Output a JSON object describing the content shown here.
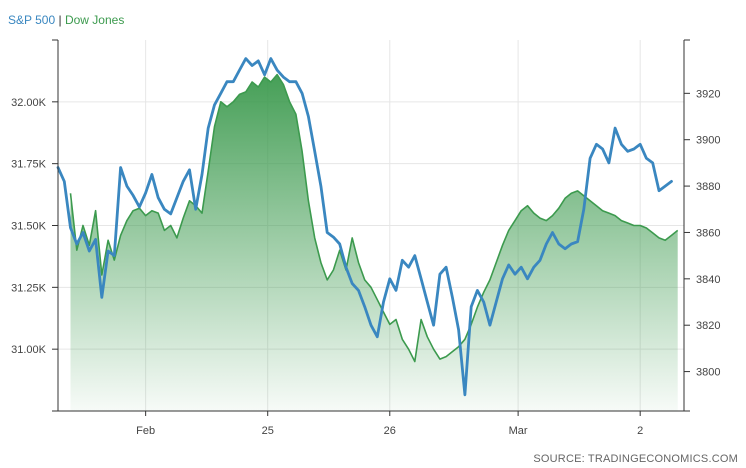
{
  "legend": {
    "sp500": "S&P 500",
    "separator": "|",
    "dowjones": "Dow Jones"
  },
  "source": "SOURCE: TRADINGECONOMICS.COM",
  "colors": {
    "sp500": "#3a87c0",
    "dowjones": "#3c9a4e",
    "axis": "#333333",
    "grid": "#e6e6e6"
  },
  "chart_data": {
    "type": "line",
    "grid": true,
    "legend_position": "top-left",
    "x_ticks": [
      {
        "label": "Feb",
        "t": 0.14
      },
      {
        "label": "25",
        "t": 0.335
      },
      {
        "label": "26",
        "t": 0.53
      },
      {
        "label": "Mar",
        "t": 0.735
      },
      {
        "label": "2",
        "t": 0.93
      }
    ],
    "y_left": {
      "series": "Dow Jones",
      "ylim": [
        30750,
        32250
      ],
      "ticks": [
        31000,
        31250,
        31500,
        31750,
        32000
      ],
      "tick_labels": [
        "31.00K",
        "31.25K",
        "31.50K",
        "31.75K",
        "32.00K"
      ]
    },
    "y_right": {
      "series": "S&P 500",
      "ylim": [
        3783,
        3943
      ],
      "ticks": [
        3800,
        3820,
        3840,
        3860,
        3880,
        3900,
        3920
      ],
      "tick_labels": [
        "3800",
        "3820",
        "3840",
        "3860",
        "3880",
        "3900",
        "3920"
      ]
    },
    "series": [
      {
        "name": "S&P 500",
        "axis": "right",
        "style": "line",
        "x": [
          0,
          0.01,
          0.02,
          0.03,
          0.04,
          0.05,
          0.06,
          0.07,
          0.08,
          0.09,
          0.1,
          0.11,
          0.12,
          0.13,
          0.14,
          0.15,
          0.16,
          0.17,
          0.18,
          0.19,
          0.2,
          0.21,
          0.22,
          0.23,
          0.24,
          0.25,
          0.26,
          0.27,
          0.28,
          0.29,
          0.3,
          0.31,
          0.32,
          0.33,
          0.34,
          0.35,
          0.36,
          0.37,
          0.38,
          0.39,
          0.4,
          0.41,
          0.42,
          0.43,
          0.44,
          0.45,
          0.46,
          0.47,
          0.48,
          0.49,
          0.5,
          0.51,
          0.52,
          0.53,
          0.54,
          0.55,
          0.56,
          0.57,
          0.58,
          0.59,
          0.6,
          0.61,
          0.62,
          0.63,
          0.64,
          0.65,
          0.66,
          0.67,
          0.68,
          0.69,
          0.7,
          0.71,
          0.72,
          0.73,
          0.74,
          0.75,
          0.76,
          0.77,
          0.78,
          0.79,
          0.8,
          0.81,
          0.82,
          0.83,
          0.84,
          0.85,
          0.86,
          0.87,
          0.88,
          0.89,
          0.9,
          0.91,
          0.92,
          0.93,
          0.94,
          0.95,
          0.96,
          0.97,
          0.98
        ],
        "values": [
          3888,
          3882,
          3862,
          3855,
          3860,
          3852,
          3857,
          3832,
          3852,
          3850,
          3888,
          3880,
          3876,
          3871,
          3877,
          3885,
          3875,
          3870,
          3868,
          3875,
          3882,
          3887,
          3870,
          3885,
          3905,
          3915,
          3920,
          3925,
          3925,
          3930,
          3935,
          3932,
          3934,
          3928,
          3935,
          3930,
          3927,
          3925,
          3925,
          3920,
          3910,
          3895,
          3880,
          3860,
          3858,
          3855,
          3845,
          3838,
          3835,
          3828,
          3820,
          3815,
          3830,
          3840,
          3835,
          3848,
          3845,
          3850,
          3840,
          3830,
          3820,
          3842,
          3845,
          3832,
          3818,
          3790,
          3828,
          3835,
          3830,
          3820,
          3830,
          3840,
          3846,
          3842,
          3845,
          3840,
          3845,
          3848,
          3855,
          3860,
          3855,
          3853,
          3855,
          3856,
          3870,
          3892,
          3898,
          3896,
          3890,
          3905,
          3898,
          3895,
          3896,
          3898,
          3892,
          3890,
          3878,
          3880,
          3882
        ]
      },
      {
        "name": "Dow Jones",
        "axis": "left",
        "style": "area",
        "x": [
          0.02,
          0.03,
          0.04,
          0.05,
          0.06,
          0.07,
          0.08,
          0.09,
          0.1,
          0.11,
          0.12,
          0.13,
          0.14,
          0.15,
          0.16,
          0.17,
          0.18,
          0.19,
          0.2,
          0.21,
          0.22,
          0.23,
          0.24,
          0.25,
          0.26,
          0.27,
          0.28,
          0.29,
          0.3,
          0.31,
          0.32,
          0.33,
          0.34,
          0.35,
          0.36,
          0.37,
          0.38,
          0.39,
          0.4,
          0.41,
          0.42,
          0.43,
          0.44,
          0.45,
          0.46,
          0.47,
          0.48,
          0.49,
          0.5,
          0.51,
          0.52,
          0.53,
          0.54,
          0.55,
          0.56,
          0.57,
          0.58,
          0.59,
          0.6,
          0.61,
          0.62,
          0.63,
          0.64,
          0.65,
          0.66,
          0.67,
          0.68,
          0.69,
          0.7,
          0.71,
          0.72,
          0.73,
          0.74,
          0.75,
          0.76,
          0.77,
          0.78,
          0.79,
          0.8,
          0.81,
          0.82,
          0.83,
          0.84,
          0.85,
          0.86,
          0.87,
          0.88,
          0.89,
          0.9,
          0.91,
          0.92,
          0.93,
          0.94,
          0.95,
          0.96,
          0.97,
          0.98,
          0.99
        ],
        "values": [
          31630,
          31400,
          31500,
          31420,
          31560,
          31300,
          31440,
          31360,
          31460,
          31520,
          31560,
          31570,
          31540,
          31560,
          31550,
          31480,
          31500,
          31450,
          31530,
          31600,
          31580,
          31550,
          31720,
          31900,
          32000,
          31980,
          32000,
          32030,
          32040,
          32080,
          32060,
          32100,
          32080,
          32110,
          32070,
          32000,
          31950,
          31800,
          31600,
          31450,
          31350,
          31280,
          31320,
          31400,
          31320,
          31450,
          31350,
          31280,
          31250,
          31200,
          31150,
          31100,
          31120,
          31040,
          31000,
          30950,
          31120,
          31050,
          31000,
          30960,
          30970,
          30990,
          31010,
          31040,
          31100,
          31170,
          31230,
          31280,
          31350,
          31420,
          31480,
          31520,
          31560,
          31580,
          31550,
          31530,
          31520,
          31540,
          31570,
          31610,
          31630,
          31640,
          31620,
          31600,
          31580,
          31560,
          31550,
          31540,
          31520,
          31510,
          31500,
          31500,
          31490,
          31470,
          31450,
          31440,
          31460,
          31480
        ]
      }
    ]
  }
}
